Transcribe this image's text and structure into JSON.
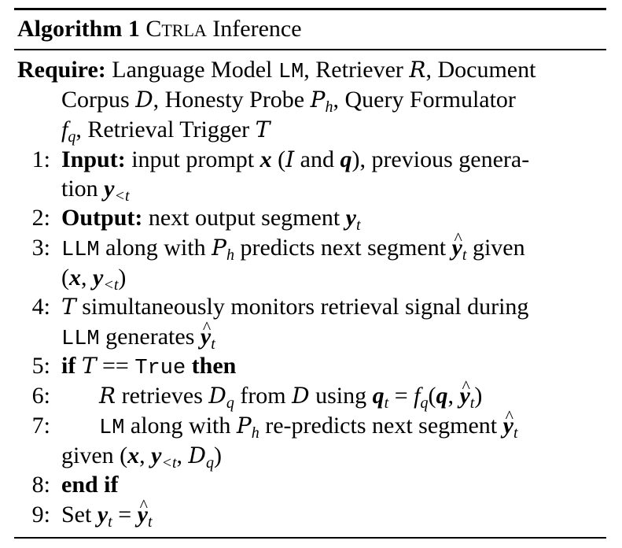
{
  "algorithm": {
    "label": "Algorithm 1",
    "name_first": "C",
    "name_rest": "TRLA",
    "name_suffix": " Inference"
  },
  "require": {
    "keyword": "Require:",
    "line1_a": "Language Model ",
    "line1_lm": "LM",
    "line1_b": ", Retriever ",
    "line1_r": "R",
    "line1_c": ", Document",
    "line2_a": "Corpus ",
    "line2_d": "D",
    "line2_b": ", Honesty Probe ",
    "line2_p": "P",
    "line2_psub": "h",
    "line2_c": ", Query Formulator",
    "line3_f": "f",
    "line3_fsub": "q",
    "line3_b": ", Retrieval Trigger ",
    "line3_t": "T"
  },
  "steps": {
    "s1": {
      "num": "1:",
      "kw": "Input:",
      "a": " input prompt ",
      "x": "x",
      "b": " (",
      "i": "I",
      "c": " and ",
      "q": "q",
      "d": "), previous genera-",
      "cont_a": "tion ",
      "cont_y": "y",
      "cont_sub": "<t"
    },
    "s2": {
      "num": "2:",
      "kw": "Output:",
      "a": " next output segment ",
      "y": "y",
      "sub": "t"
    },
    "s3": {
      "num": "3:",
      "llm": "LLM",
      "a": " along with ",
      "p": "P",
      "psub": "h",
      "b": " predicts next segment ",
      "y": "y",
      "sub": "t",
      "c": " given",
      "cont_a": "(",
      "cont_x": "x",
      "cont_b": ", ",
      "cont_y": "y",
      "cont_sub": "<t",
      "cont_c": ")"
    },
    "s4": {
      "num": "4:",
      "t": "T",
      "a": " simultaneously monitors retrieval signal during",
      "cont_llm": "LLM",
      "cont_a": " generates ",
      "cont_y": "y",
      "cont_sub": "t"
    },
    "s5": {
      "num": "5:",
      "kw_if": "if",
      "t": "T",
      "eq": " == ",
      "true": "True",
      "kw_then": "then"
    },
    "s6": {
      "num": "6:",
      "r": "R",
      "a": " retrieves ",
      "d": "D",
      "dsub": "q",
      "b": " from ",
      "d2": "D",
      "c": " using ",
      "q": "q",
      "qsub": "t",
      "eq": " = ",
      "f": "f",
      "fsub": "q",
      "open": "(",
      "q2": "q",
      "comma": ", ",
      "y": "y",
      "ysub": "t",
      "close": ")"
    },
    "s7": {
      "num": "7:",
      "lm": "LM",
      "a": " along with ",
      "p": "P",
      "psub": "h",
      "b": " re-predicts next segment ",
      "y": "y",
      "sub": "t",
      "cont_a": "given (",
      "cont_x": "x",
      "cont_b": ", ",
      "cont_y": "y",
      "cont_ysub": "<t",
      "cont_c": ", ",
      "cont_d": "D",
      "cont_dsub": "q",
      "cont_close": ")"
    },
    "s8": {
      "num": "8:",
      "kw": "end if"
    },
    "s9": {
      "num": "9:",
      "a": "Set ",
      "y": "y",
      "sub": "t",
      "eq": " = ",
      "y2": "y",
      "sub2": "t"
    }
  }
}
